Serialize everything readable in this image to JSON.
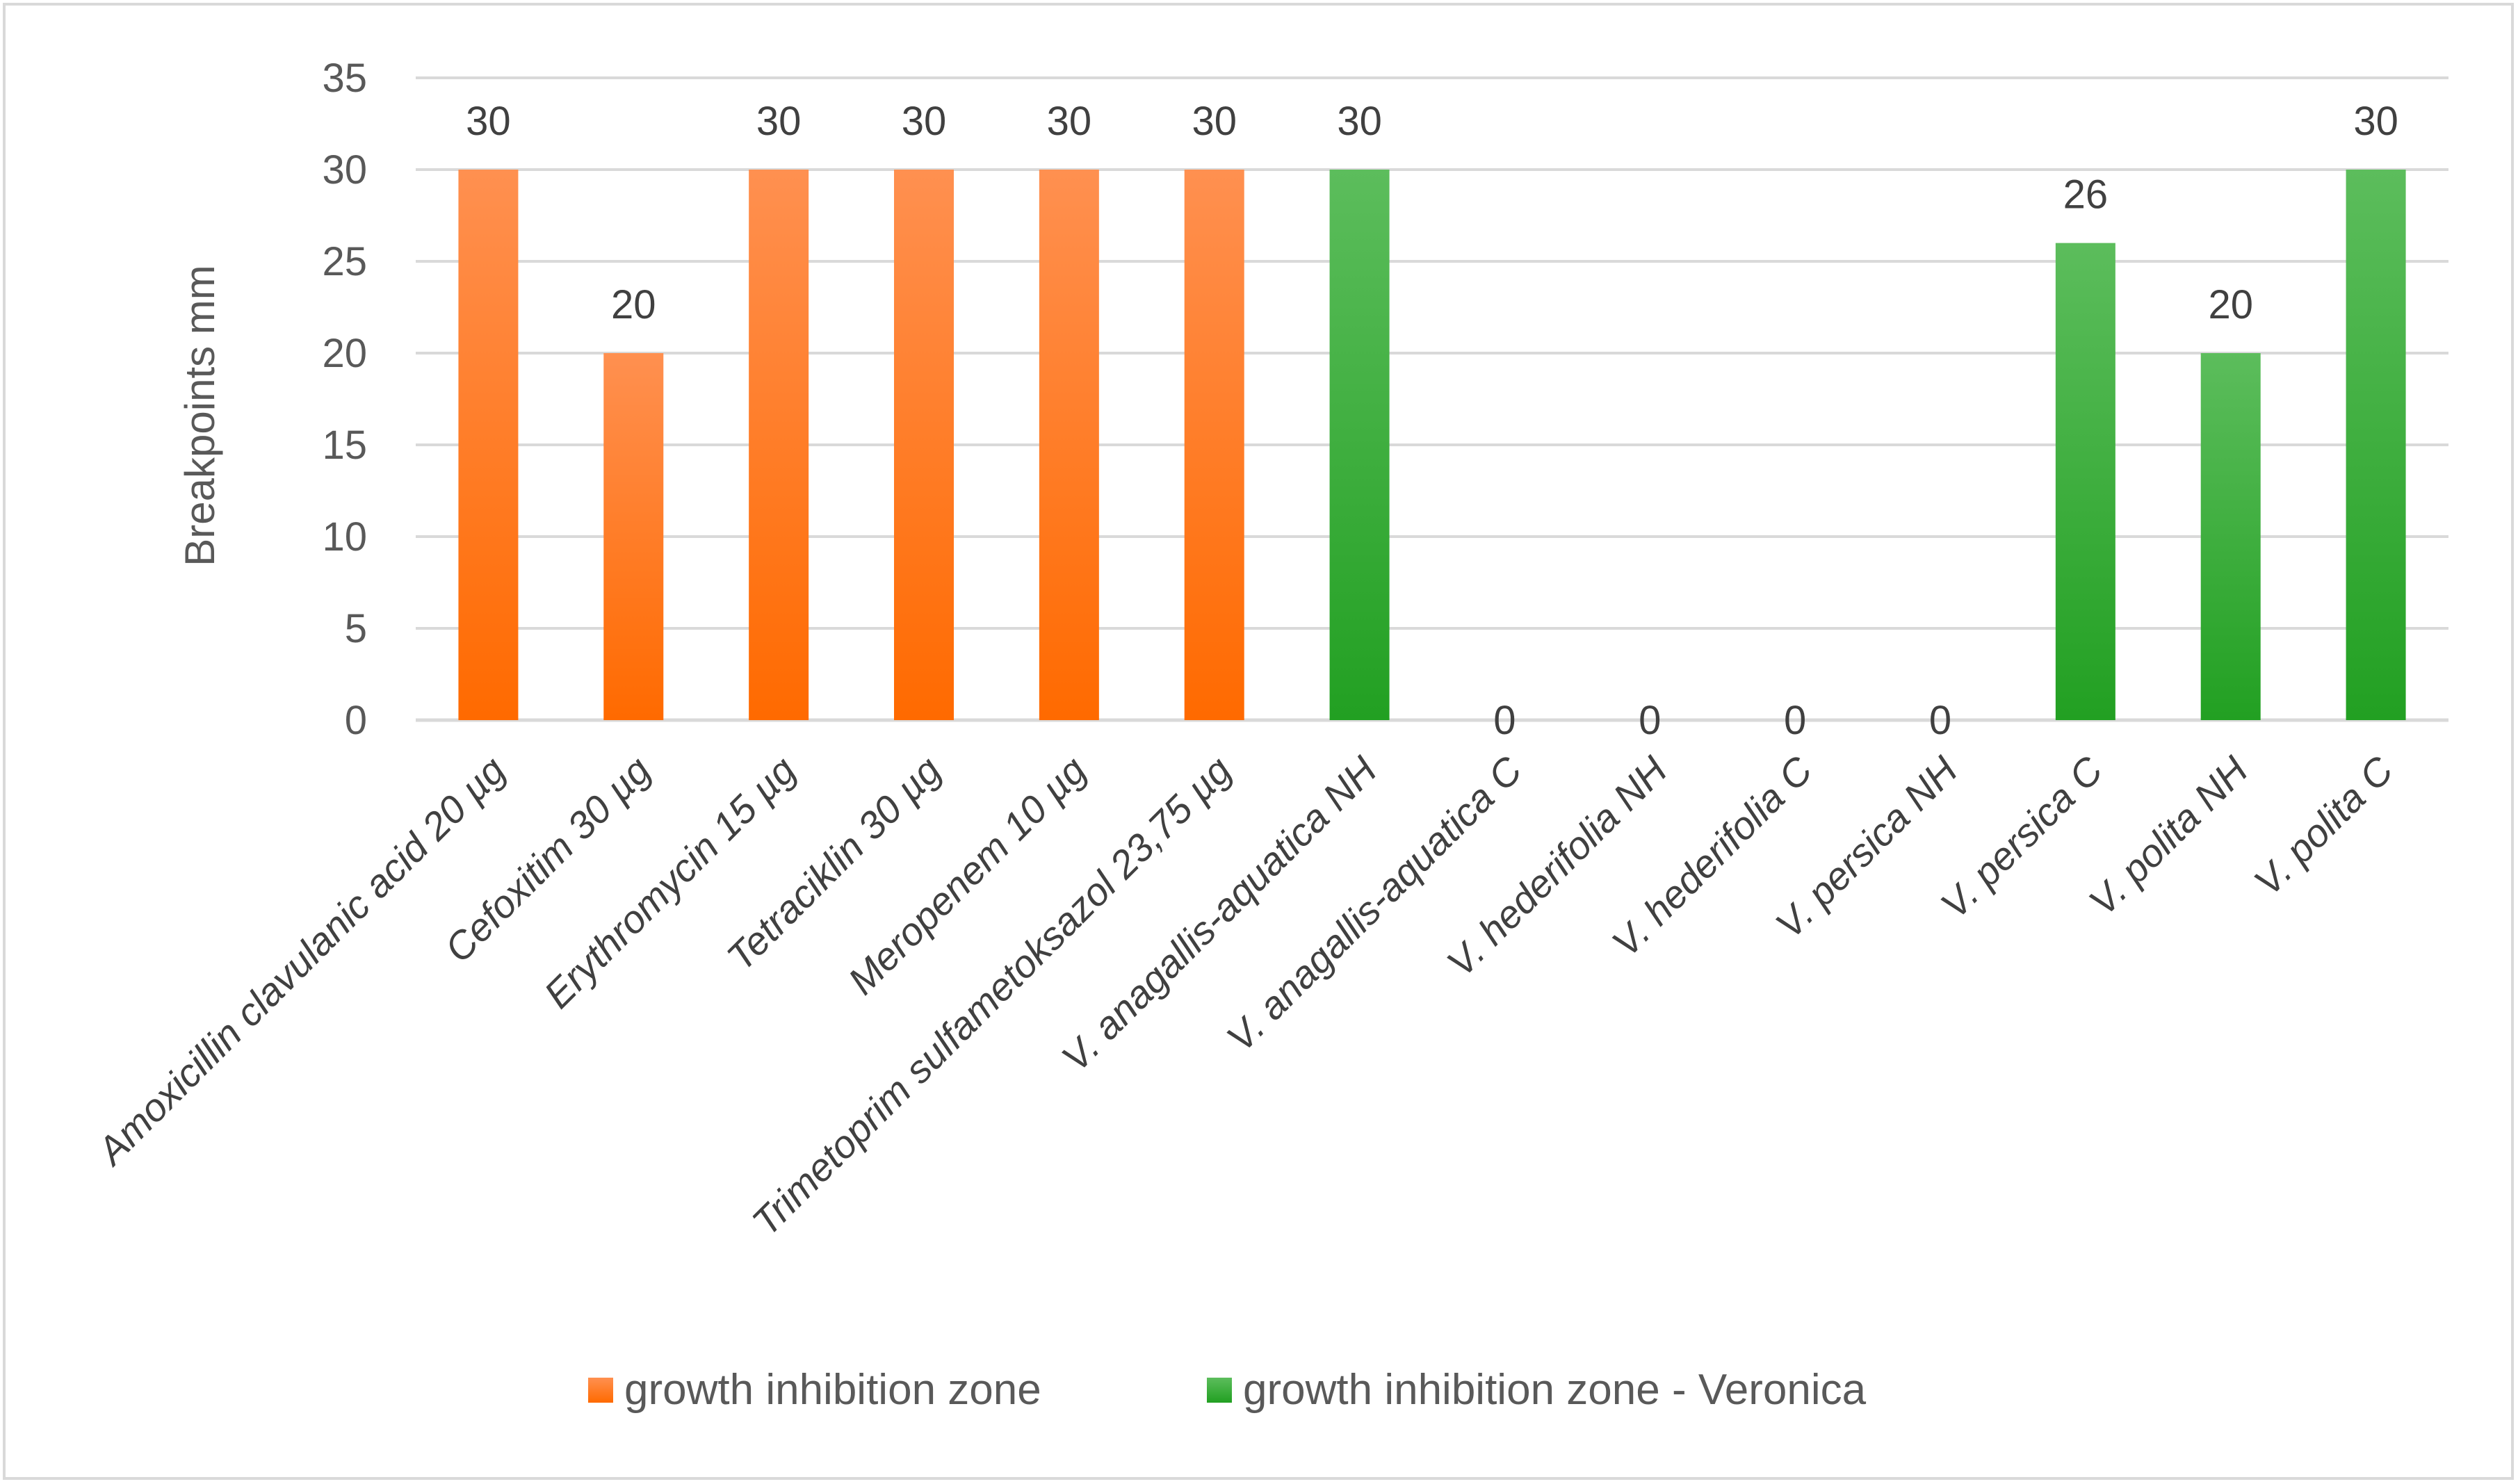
{
  "chart_data": {
    "type": "bar",
    "title": "",
    "xlabel": "",
    "ylabel": "Breakpoints mm",
    "ylim": [
      0,
      35
    ],
    "ytick_step": 5,
    "yticks": [
      "0",
      "5",
      "10",
      "15",
      "20",
      "25",
      "30",
      "35"
    ],
    "grid": true,
    "legend_position": "bottom",
    "categories": [
      "Amoxicillin clavulanic acid 20 µg",
      "Cefoxitim 30 µg",
      "Erythromycin 15 µg",
      "Tetraciklin 30  µg",
      "Meropenem 10 µg",
      "Trimetoprim sulfametoksazol 23,75 µg",
      "V. anagallis-aquatica NH",
      "V. anagallis-aquatica C",
      "V. hederifolia NH",
      "V. hederifolia C",
      "V. persica NH",
      "V. persica C",
      "V. polita NH",
      "V. polita C"
    ],
    "values": [
      30,
      20,
      30,
      30,
      30,
      30,
      30,
      0,
      0,
      0,
      0,
      26,
      20,
      30
    ],
    "data_labels": [
      "30",
      "20",
      "30",
      "30",
      "30",
      "30",
      "30",
      "0",
      "0",
      "0",
      "0",
      "26",
      "20",
      "30"
    ],
    "series_index": [
      0,
      0,
      0,
      0,
      0,
      0,
      1,
      1,
      1,
      1,
      1,
      1,
      1,
      1
    ],
    "series": [
      {
        "name": "growth inhibition zone",
        "color": "#ff6a00",
        "color_light": "#ff9050"
      },
      {
        "name": "growth inhibition zone - Veronica",
        "color": "#22a022",
        "color_light": "#5cbd5c"
      }
    ]
  }
}
